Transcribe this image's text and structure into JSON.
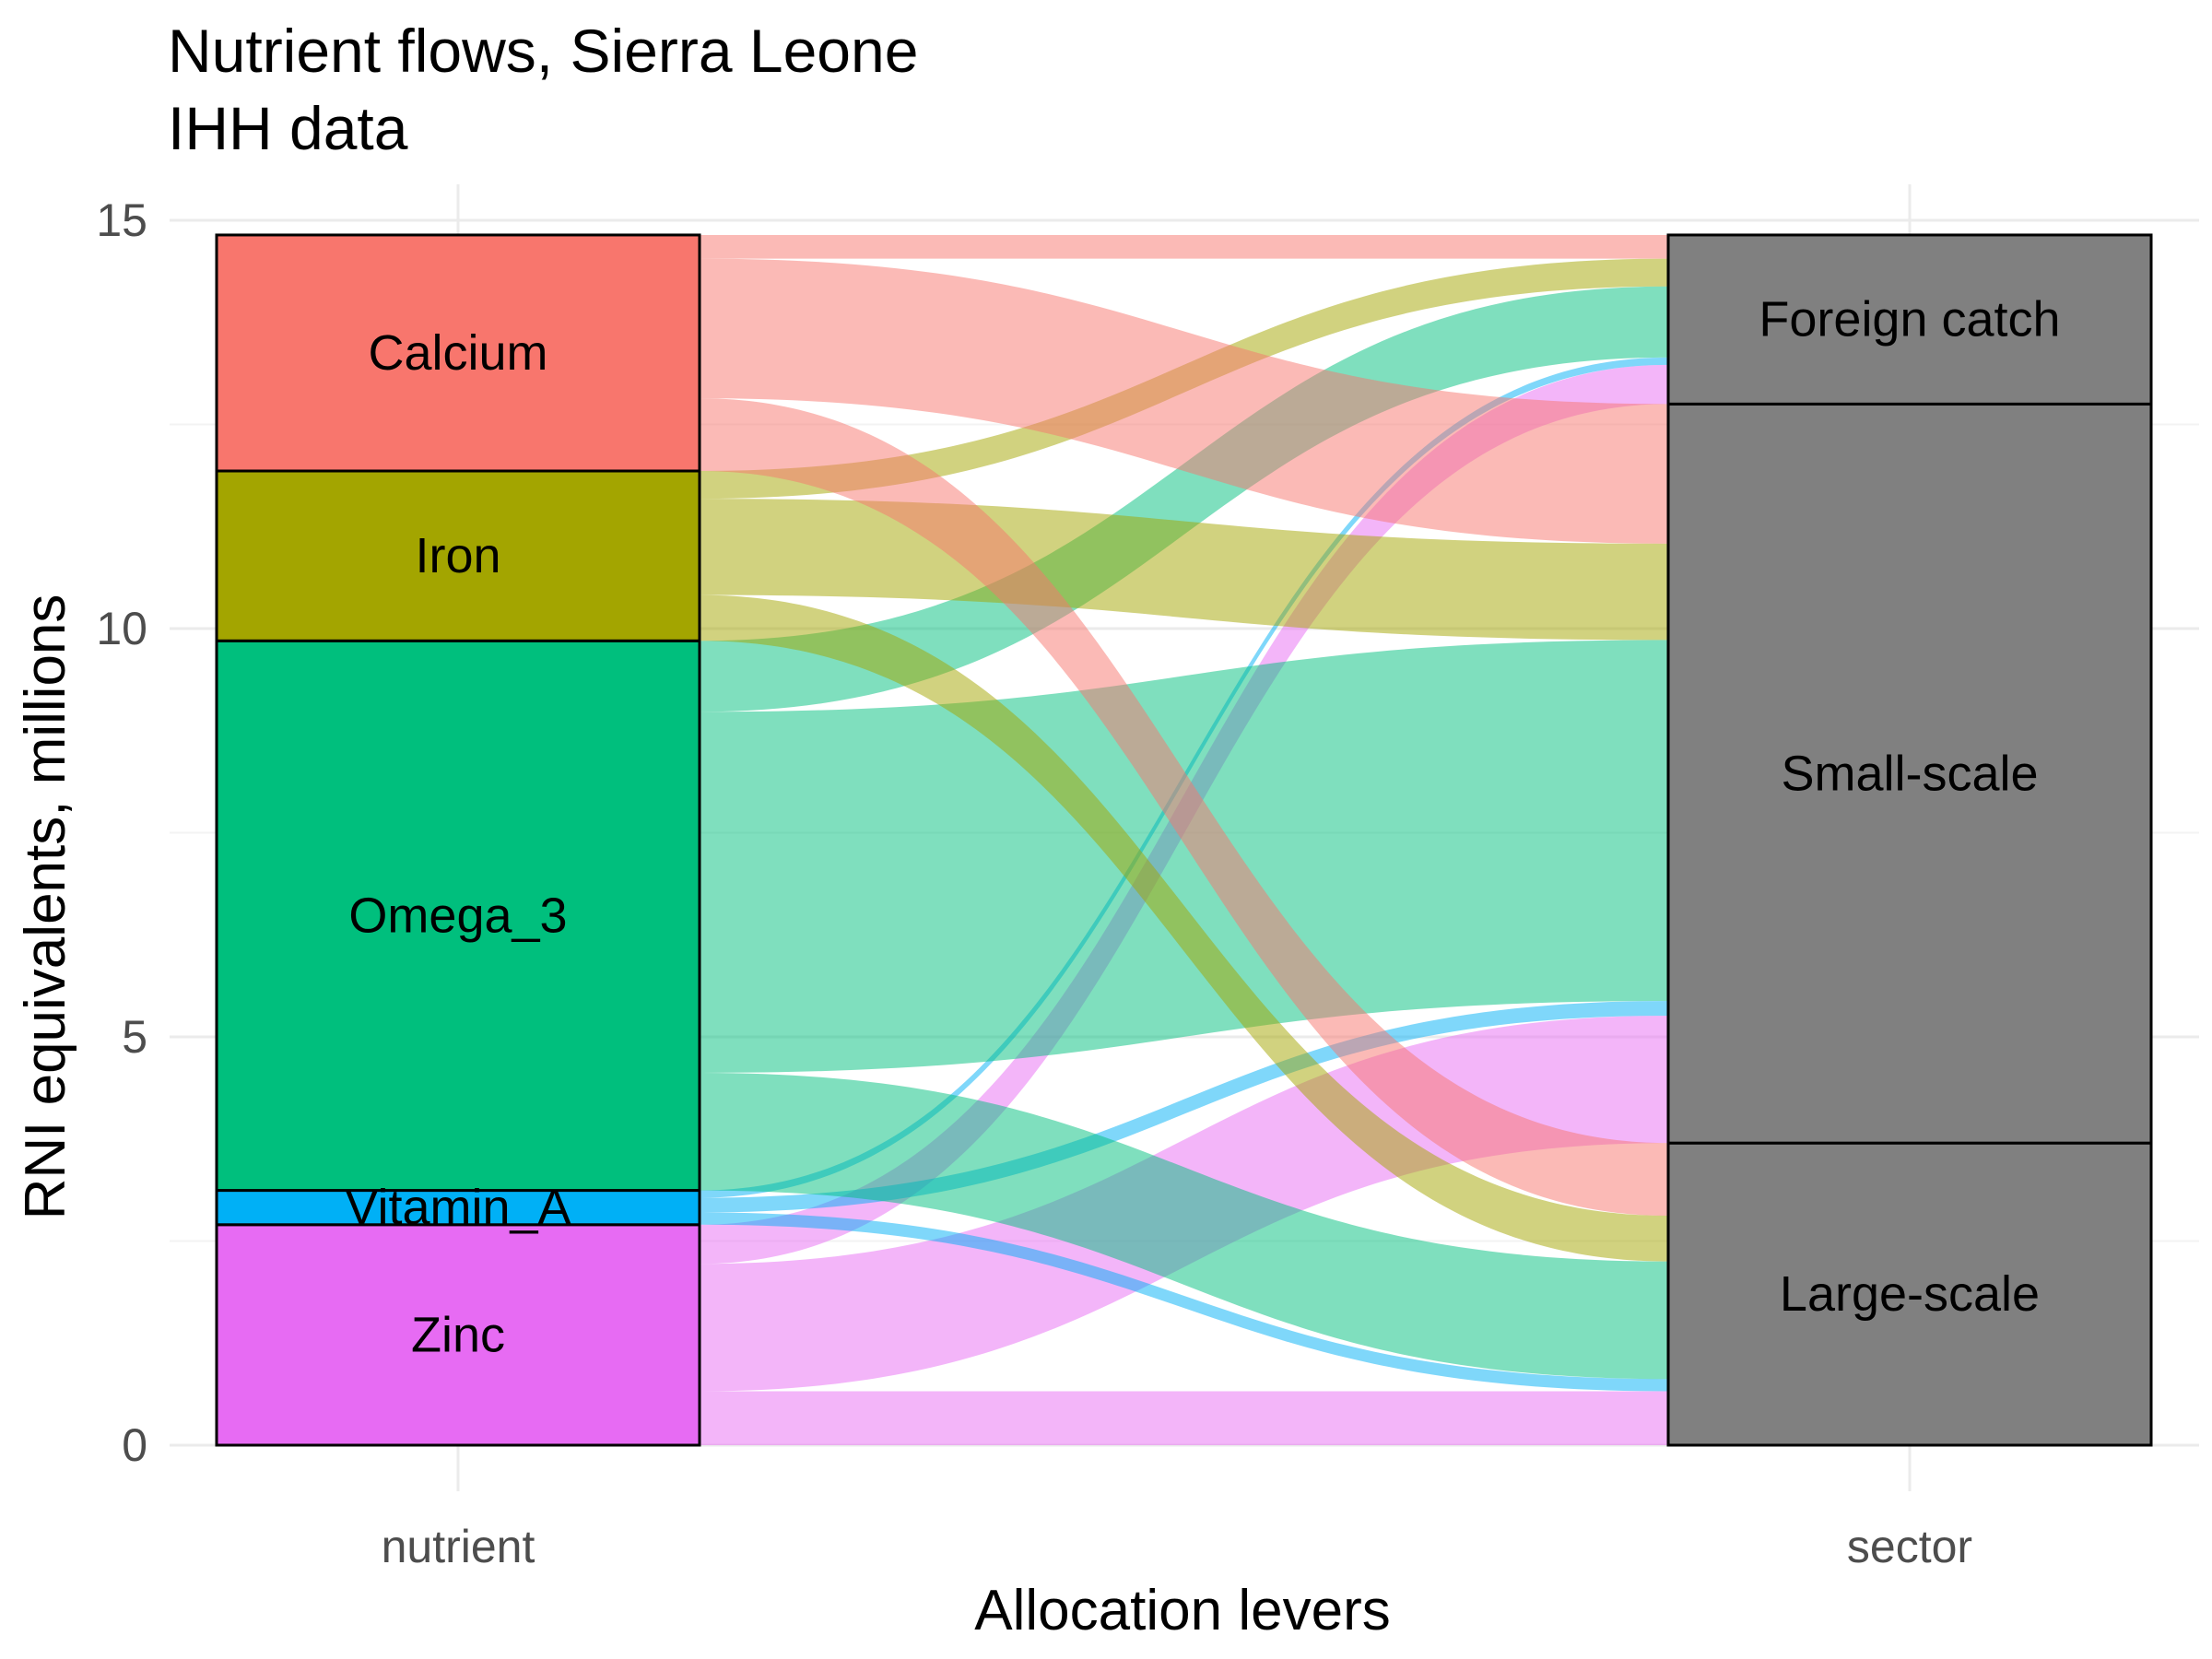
{
  "chart_data": {
    "type": "alluvial",
    "title": "Nutrient flows, Sierra Leone",
    "subtitle": "IHH data",
    "xlabel": "Allocation levers",
    "ylabel": "RNI equivalents, millions",
    "x_categories": [
      "nutrient",
      "sector"
    ],
    "ylim": [
      0,
      15
    ],
    "yticks": [
      0,
      5,
      10,
      15
    ],
    "grid": true,
    "legend": "none",
    "nutrients": [
      {
        "name": "Zinc",
        "color": "#E76BF3"
      },
      {
        "name": "Vitamin_A",
        "color": "#00B0F6"
      },
      {
        "name": "Omega_3",
        "color": "#00BF7D"
      },
      {
        "name": "Iron",
        "color": "#A3A500"
      },
      {
        "name": "Calcium",
        "color": "#F8766D"
      }
    ],
    "sectors": [
      {
        "name": "Large-scale",
        "color": "#808080"
      },
      {
        "name": "Small-scale",
        "color": "#808080"
      },
      {
        "name": "Foreign catch",
        "color": "#808080"
      }
    ],
    "flows": [
      {
        "nutrient": "Zinc",
        "sector": "Large-scale",
        "value": 0.66
      },
      {
        "nutrient": "Zinc",
        "sector": "Small-scale",
        "value": 1.56
      },
      {
        "nutrient": "Zinc",
        "sector": "Foreign catch",
        "value": 0.48
      },
      {
        "nutrient": "Vitamin_A",
        "sector": "Large-scale",
        "value": 0.15
      },
      {
        "nutrient": "Vitamin_A",
        "sector": "Small-scale",
        "value": 0.18
      },
      {
        "nutrient": "Vitamin_A",
        "sector": "Foreign catch",
        "value": 0.09
      },
      {
        "nutrient": "Omega_3",
        "sector": "Large-scale",
        "value": 1.44
      },
      {
        "nutrient": "Omega_3",
        "sector": "Small-scale",
        "value": 4.42
      },
      {
        "nutrient": "Omega_3",
        "sector": "Foreign catch",
        "value": 0.87
      },
      {
        "nutrient": "Iron",
        "sector": "Large-scale",
        "value": 0.56
      },
      {
        "nutrient": "Iron",
        "sector": "Small-scale",
        "value": 1.18
      },
      {
        "nutrient": "Iron",
        "sector": "Foreign catch",
        "value": 0.34
      },
      {
        "nutrient": "Calcium",
        "sector": "Large-scale",
        "value": 0.89
      },
      {
        "nutrient": "Calcium",
        "sector": "Small-scale",
        "value": 1.71
      },
      {
        "nutrient": "Calcium",
        "sector": "Foreign catch",
        "value": 0.29
      }
    ]
  }
}
